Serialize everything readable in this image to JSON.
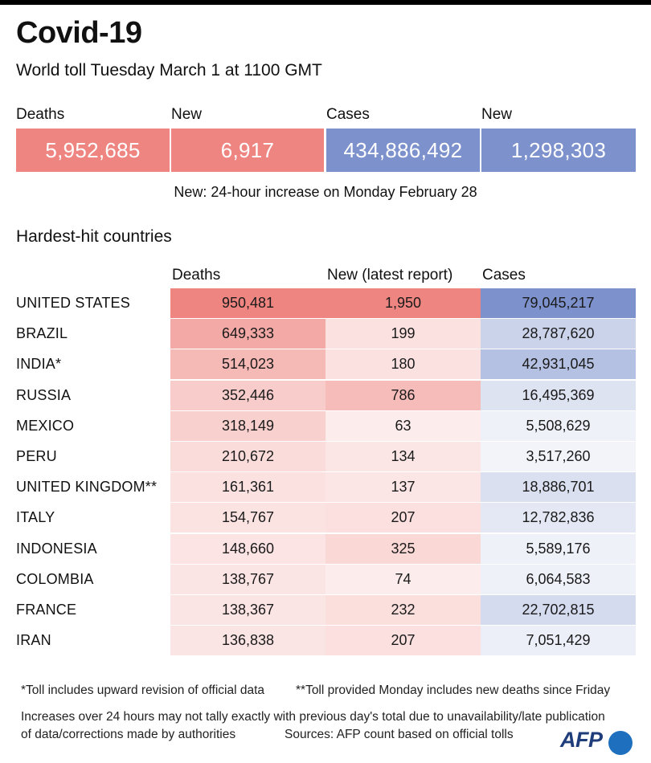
{
  "header": {
    "title": "Covid-19",
    "subtitle": "World toll Tuesday March 1 at 1100 GMT"
  },
  "summary": {
    "deaths_label": "Deaths",
    "deaths_value": "5,952,685",
    "new_deaths_label": "New",
    "new_deaths_value": "6,917",
    "cases_label": "Cases",
    "cases_value": "434,886,492",
    "new_cases_label": "New",
    "new_cases_value": "1,298,303",
    "note": "New: 24-hour increase on Monday February 28",
    "colors": {
      "deaths": "#ee8580",
      "cases": "#7d92cc"
    }
  },
  "section_title": "Hardest-hit countries",
  "chart_data": {
    "type": "table",
    "columns": [
      "Deaths",
      "New (latest report)",
      "Cases"
    ],
    "rows": [
      {
        "country": "UNITED STATES",
        "deaths": "950,481",
        "new": "1,950",
        "cases": "79,045,217"
      },
      {
        "country": "BRAZIL",
        "deaths": "649,333",
        "new": "199",
        "cases": "28,787,620"
      },
      {
        "country": "INDIA*",
        "deaths": "514,023",
        "new": "180",
        "cases": "42,931,045"
      },
      {
        "country": "RUSSIA",
        "deaths": "352,446",
        "new": "786",
        "cases": "16,495,369"
      },
      {
        "country": "MEXICO",
        "deaths": "318,149",
        "new": "63",
        "cases": "5,508,629"
      },
      {
        "country": "PERU",
        "deaths": "210,672",
        "new": "134",
        "cases": "3,517,260"
      },
      {
        "country": "UNITED KINGDOM**",
        "deaths": "161,361",
        "new": "137",
        "cases": "18,886,701"
      },
      {
        "country": "ITALY",
        "deaths": "154,767",
        "new": "207",
        "cases": "12,782,836"
      },
      {
        "country": "INDONESIA",
        "deaths": "148,660",
        "new": "325",
        "cases": "5,589,176"
      },
      {
        "country": "COLOMBIA",
        "deaths": "138,767",
        "new": "74",
        "cases": "6,064,583"
      },
      {
        "country": "FRANCE",
        "deaths": "138,367",
        "new": "232",
        "cases": "22,702,815"
      },
      {
        "country": "IRAN",
        "deaths": "136,838",
        "new": "207",
        "cases": "7,051,429"
      }
    ],
    "heat_colors": {
      "deaths_new": "#ee8580",
      "cases": "#7d92cc",
      "low": "#ffffff"
    }
  },
  "footer": {
    "note1": "*Toll includes upward revision of official data",
    "note2": "**Toll provided Monday includes new deaths since Friday",
    "note3": "Increases over 24 hours may not tally exactly with previous day's total due to unavailability/late publication",
    "note4": "of data/corrections made by authorities",
    "sources": "Sources: AFP count based on official tolls",
    "logo": "AFP"
  }
}
